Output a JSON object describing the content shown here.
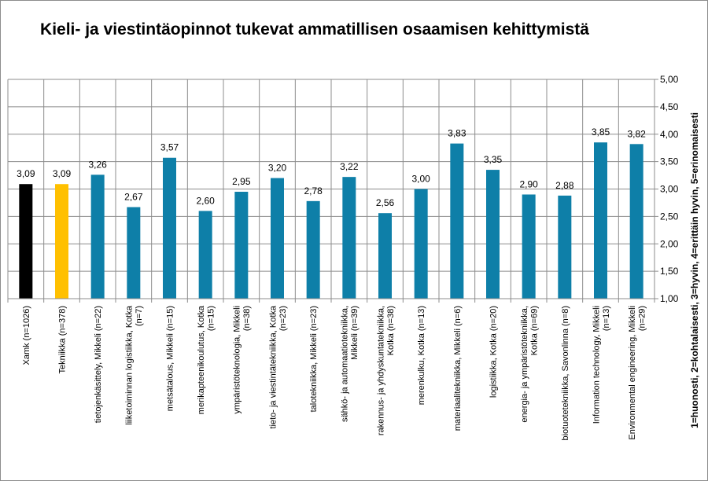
{
  "chart_data": {
    "type": "bar",
    "title": "Kieli- ja viestintäopinnot tukevat ammatillisen osaamisen kehittymistä",
    "ylabel": "1=huonosti, 2=kohtalaisesti, 3=hyvin, 4=erittäin hyvin, 5=erinomaisesti",
    "ylim": [
      1,
      5
    ],
    "yticks": [
      "1,00",
      "1,50",
      "2,00",
      "2,50",
      "3,00",
      "3,50",
      "4,00",
      "4,50",
      "5,00"
    ],
    "grid": true,
    "categories": [
      [
        "Xamk (n=1026)"
      ],
      [
        "Tekniikka (n=378)"
      ],
      [
        "tietojenkäsittely, Mikkeli (n=22)"
      ],
      [
        "liiketoiminnan logistiikka, Kotka",
        "(n=7)"
      ],
      [
        "metsätalous, Mikkeli (n=15)"
      ],
      [
        "merikapteenikoulutus, Kotka",
        "(n=15)"
      ],
      [
        "ympäristöteknologia, Mikkeli",
        "(n=38)"
      ],
      [
        "tieto- ja viestintätekniikka, Kotka",
        "(n=23)"
      ],
      [
        "talotekniikka, Mikkeli (n=23)"
      ],
      [
        "sähkö- ja automaatiotekniikka,",
        "Mikkeli (n=39)"
      ],
      [
        "rakennus- ja yhdyskuntatekniikka,",
        "Kotka (n=38)"
      ],
      [
        "merenkulku, Kotka (n=13)"
      ],
      [
        "materiaalitekniikka, Mikkeli (n=6)"
      ],
      [
        "logistiikka, Kotka (n=20)"
      ],
      [
        "energia- ja ympäristötekniikka,",
        "Kotka (n=69)"
      ],
      [
        "biotuotetekniikka, Savonlinna (n=8)"
      ],
      [
        "Information technology, Mikkeli",
        "(n=13)"
      ],
      [
        "Environmental engineering, Mikkeli",
        "(n=29)"
      ]
    ],
    "values": [
      3.09,
      3.09,
      3.26,
      2.67,
      3.57,
      2.6,
      2.95,
      3.2,
      2.78,
      3.22,
      2.56,
      3.0,
      3.83,
      3.35,
      2.9,
      2.88,
      3.85,
      3.82
    ],
    "value_labels": [
      "3,09",
      "3,09",
      "3,26",
      "2,67",
      "3,57",
      "2,60",
      "2,95",
      "3,20",
      "2,78",
      "3,22",
      "2,56",
      "3,00",
      "3,83",
      "3,35",
      "2,90",
      "2,88",
      "3,85",
      "3,82"
    ],
    "colors": [
      "#000000",
      "#ffc000",
      "#0e7fa8",
      "#0e7fa8",
      "#0e7fa8",
      "#0e7fa8",
      "#0e7fa8",
      "#0e7fa8",
      "#0e7fa8",
      "#0e7fa8",
      "#0e7fa8",
      "#0e7fa8",
      "#0e7fa8",
      "#0e7fa8",
      "#0e7fa8",
      "#0e7fa8",
      "#0e7fa8",
      "#0e7fa8"
    ]
  }
}
